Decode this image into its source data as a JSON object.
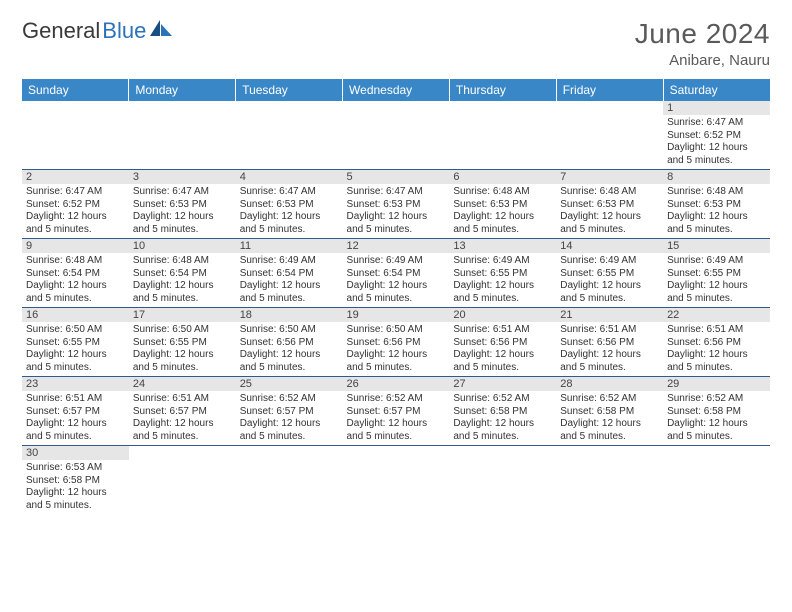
{
  "logo": {
    "text1": "General",
    "text2": "Blue"
  },
  "title": "June 2024",
  "location": "Anibare, Nauru",
  "colors": {
    "header_bg": "#3a87c8",
    "header_text": "#ffffff",
    "daynum_bg": "#e6e6e6",
    "row_border": "#2d5a8f",
    "logo_blue": "#2d72b8",
    "logo_gray": "#3a3a3a",
    "title_color": "#5a5a5a"
  },
  "day_headers": [
    "Sunday",
    "Monday",
    "Tuesday",
    "Wednesday",
    "Thursday",
    "Friday",
    "Saturday"
  ],
  "weeks": [
    [
      null,
      null,
      null,
      null,
      null,
      null,
      {
        "n": "1",
        "sr": "6:47 AM",
        "ss": "6:52 PM",
        "dl": "12 hours and 5 minutes."
      }
    ],
    [
      {
        "n": "2",
        "sr": "6:47 AM",
        "ss": "6:52 PM",
        "dl": "12 hours and 5 minutes."
      },
      {
        "n": "3",
        "sr": "6:47 AM",
        "ss": "6:53 PM",
        "dl": "12 hours and 5 minutes."
      },
      {
        "n": "4",
        "sr": "6:47 AM",
        "ss": "6:53 PM",
        "dl": "12 hours and 5 minutes."
      },
      {
        "n": "5",
        "sr": "6:47 AM",
        "ss": "6:53 PM",
        "dl": "12 hours and 5 minutes."
      },
      {
        "n": "6",
        "sr": "6:48 AM",
        "ss": "6:53 PM",
        "dl": "12 hours and 5 minutes."
      },
      {
        "n": "7",
        "sr": "6:48 AM",
        "ss": "6:53 PM",
        "dl": "12 hours and 5 minutes."
      },
      {
        "n": "8",
        "sr": "6:48 AM",
        "ss": "6:53 PM",
        "dl": "12 hours and 5 minutes."
      }
    ],
    [
      {
        "n": "9",
        "sr": "6:48 AM",
        "ss": "6:54 PM",
        "dl": "12 hours and 5 minutes."
      },
      {
        "n": "10",
        "sr": "6:48 AM",
        "ss": "6:54 PM",
        "dl": "12 hours and 5 minutes."
      },
      {
        "n": "11",
        "sr": "6:49 AM",
        "ss": "6:54 PM",
        "dl": "12 hours and 5 minutes."
      },
      {
        "n": "12",
        "sr": "6:49 AM",
        "ss": "6:54 PM",
        "dl": "12 hours and 5 minutes."
      },
      {
        "n": "13",
        "sr": "6:49 AM",
        "ss": "6:55 PM",
        "dl": "12 hours and 5 minutes."
      },
      {
        "n": "14",
        "sr": "6:49 AM",
        "ss": "6:55 PM",
        "dl": "12 hours and 5 minutes."
      },
      {
        "n": "15",
        "sr": "6:49 AM",
        "ss": "6:55 PM",
        "dl": "12 hours and 5 minutes."
      }
    ],
    [
      {
        "n": "16",
        "sr": "6:50 AM",
        "ss": "6:55 PM",
        "dl": "12 hours and 5 minutes."
      },
      {
        "n": "17",
        "sr": "6:50 AM",
        "ss": "6:55 PM",
        "dl": "12 hours and 5 minutes."
      },
      {
        "n": "18",
        "sr": "6:50 AM",
        "ss": "6:56 PM",
        "dl": "12 hours and 5 minutes."
      },
      {
        "n": "19",
        "sr": "6:50 AM",
        "ss": "6:56 PM",
        "dl": "12 hours and 5 minutes."
      },
      {
        "n": "20",
        "sr": "6:51 AM",
        "ss": "6:56 PM",
        "dl": "12 hours and 5 minutes."
      },
      {
        "n": "21",
        "sr": "6:51 AM",
        "ss": "6:56 PM",
        "dl": "12 hours and 5 minutes."
      },
      {
        "n": "22",
        "sr": "6:51 AM",
        "ss": "6:56 PM",
        "dl": "12 hours and 5 minutes."
      }
    ],
    [
      {
        "n": "23",
        "sr": "6:51 AM",
        "ss": "6:57 PM",
        "dl": "12 hours and 5 minutes."
      },
      {
        "n": "24",
        "sr": "6:51 AM",
        "ss": "6:57 PM",
        "dl": "12 hours and 5 minutes."
      },
      {
        "n": "25",
        "sr": "6:52 AM",
        "ss": "6:57 PM",
        "dl": "12 hours and 5 minutes."
      },
      {
        "n": "26",
        "sr": "6:52 AM",
        "ss": "6:57 PM",
        "dl": "12 hours and 5 minutes."
      },
      {
        "n": "27",
        "sr": "6:52 AM",
        "ss": "6:58 PM",
        "dl": "12 hours and 5 minutes."
      },
      {
        "n": "28",
        "sr": "6:52 AM",
        "ss": "6:58 PM",
        "dl": "12 hours and 5 minutes."
      },
      {
        "n": "29",
        "sr": "6:52 AM",
        "ss": "6:58 PM",
        "dl": "12 hours and 5 minutes."
      }
    ],
    [
      {
        "n": "30",
        "sr": "6:53 AM",
        "ss": "6:58 PM",
        "dl": "12 hours and 5 minutes."
      },
      null,
      null,
      null,
      null,
      null,
      null
    ]
  ],
  "labels": {
    "sunrise": "Sunrise:",
    "sunset": "Sunset:",
    "daylight": "Daylight:"
  }
}
